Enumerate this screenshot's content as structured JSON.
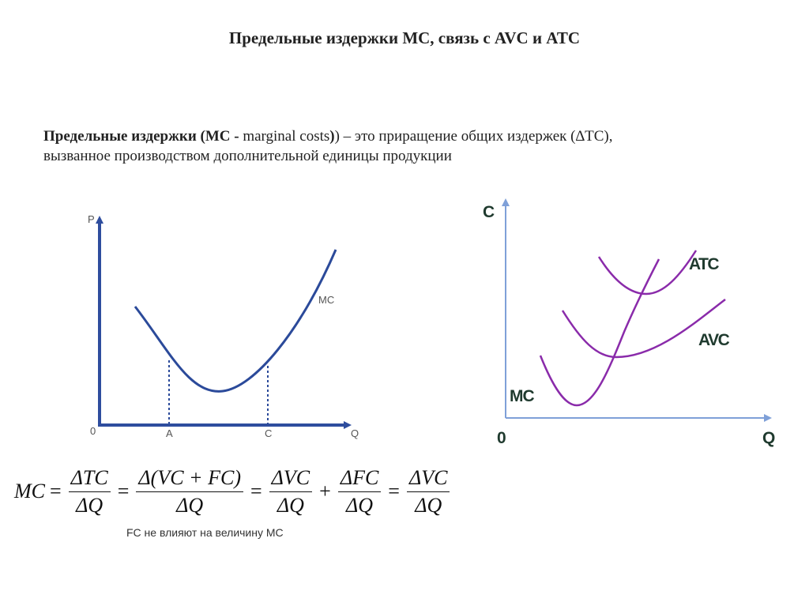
{
  "title": "Предельные издержки MC, связь с AVC и ATC",
  "definition": {
    "term": "Предельные издержки (MC -",
    "term_en": " marginal costs",
    "rest_line1": ") – это приращение общих издержек (∆TC),",
    "rest_line2": "вызванное производством дополнительной единицы продукции"
  },
  "left_graph": {
    "y_axis_label": "P",
    "x_axis_label": "Q",
    "origin_label": "0",
    "curve_label": "MC",
    "point_a_label": "A",
    "point_c_label": "C",
    "colors": {
      "axis": "#2E4D9E",
      "curve": "#2B4A9A"
    }
  },
  "right_graph": {
    "y_axis_label": "C",
    "x_axis_label": "Q",
    "origin_label": "0",
    "curves": [
      {
        "label": "ATC",
        "color": "#8A2BAA"
      },
      {
        "label": "AVC",
        "color": "#8A2BAA"
      },
      {
        "label": "MC",
        "color": "#8A2BAA"
      }
    ],
    "colors": {
      "axis": "#7FA0D8",
      "label": "#1F3A2E"
    }
  },
  "formula": {
    "lhs": "MC",
    "eq": "=",
    "plus": "+",
    "f1_num": "ΔTC",
    "f1_den": "ΔQ",
    "f2_num": "Δ(VC + FC)",
    "f2_den": "ΔQ",
    "f3_num": "ΔVC",
    "f3_den": "ΔQ",
    "f4_num": "ΔFC",
    "f4_den": "ΔQ",
    "f5_num": "ΔVC",
    "f5_den": "ΔQ"
  },
  "note": "FC не влияют на величину MC"
}
